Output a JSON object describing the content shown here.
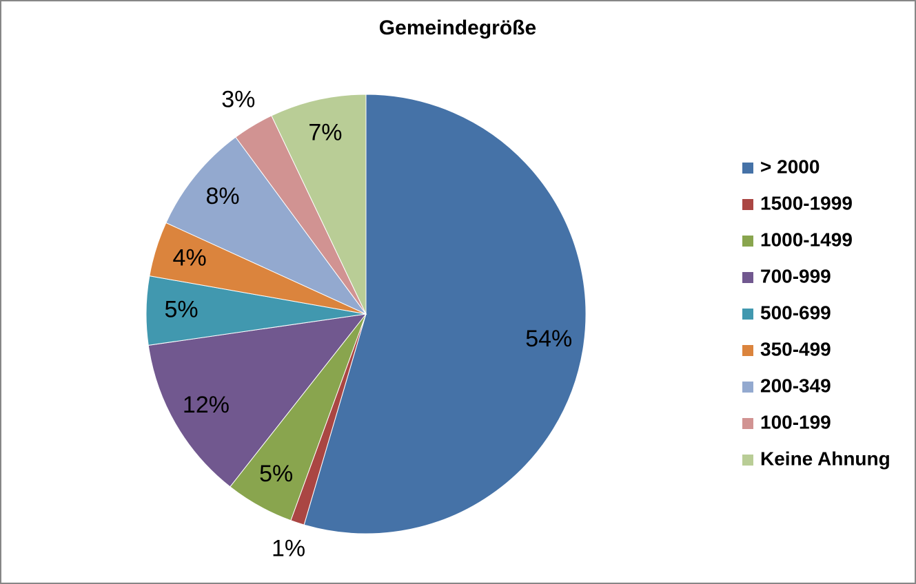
{
  "chart_data": {
    "type": "pie",
    "title": "Gemeindegröße",
    "categories": [
      "> 2000",
      "1500-1999",
      "1000-1499",
      "700-999",
      "500-699",
      "350-499",
      "200-349",
      "100-199",
      "Keine Ahnung"
    ],
    "values": [
      54,
      1,
      5,
      12,
      5,
      4,
      8,
      3,
      7
    ],
    "value_labels": [
      "54%",
      "1%",
      "5%",
      "12%",
      "5%",
      "4%",
      "8%",
      "3%",
      "7%"
    ],
    "colors": [
      "#4572a7",
      "#aa4643",
      "#89a54e",
      "#71588f",
      "#4198af",
      "#db843d",
      "#93a9cf",
      "#d19392",
      "#b9cd96"
    ],
    "legend": "right"
  }
}
